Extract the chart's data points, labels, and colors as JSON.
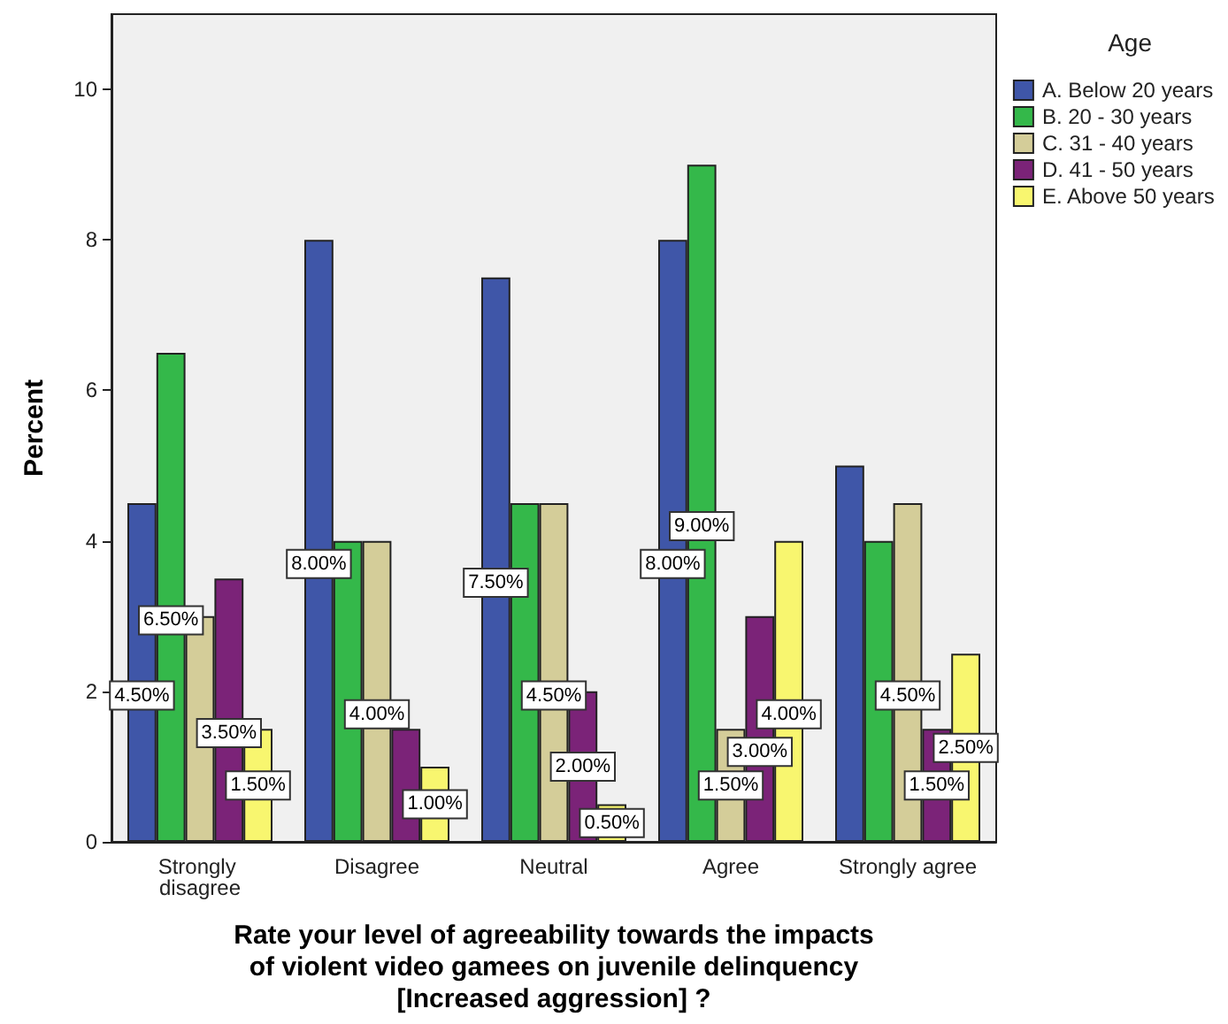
{
  "chart_data": {
    "type": "bar",
    "categories": [
      "Strongly disagree",
      "Disagree",
      "Neutral",
      "Agree",
      "Strongly agree"
    ],
    "series": [
      {
        "name": "A. Below 20 years",
        "color": "#3f56a8",
        "values": [
          4.5,
          8,
          7.5,
          8,
          5
        ],
        "value_labels": [
          "4.50%",
          "8.00%",
          "7.50%",
          "8.00%",
          null
        ]
      },
      {
        "name": "B. 20 - 30 years",
        "color": "#34b84a",
        "values": [
          6.5,
          4,
          4.5,
          9,
          4
        ],
        "value_labels": [
          "6.50%",
          null,
          null,
          "9.00%",
          null
        ]
      },
      {
        "name": "C. 31 - 40 years",
        "color": "#d4cd99",
        "values": [
          3,
          4,
          4.5,
          1.5,
          4.5
        ],
        "value_labels": [
          null,
          "4.00%",
          "4.50%",
          "1.50%",
          "4.50%"
        ]
      },
      {
        "name": "D. 41 - 50 years",
        "color": "#7b2378",
        "values": [
          3.5,
          1.5,
          2,
          3,
          1.5
        ],
        "value_labels": [
          "3.50%",
          null,
          "2.00%",
          "3.00%",
          "1.50%"
        ]
      },
      {
        "name": "E. Above 50 years",
        "color": "#f8f66f",
        "values": [
          1.5,
          1,
          0.5,
          4,
          2.5
        ],
        "value_labels": [
          "1.50%",
          "1.00%",
          "0.50%",
          "4.00%",
          "2.50%"
        ]
      }
    ],
    "xlabel": "Rate your level of agreeability towards the impacts\nof violent video gamees on juvenile delinquency\n[Increased aggression] ?",
    "ylabel": "Percent",
    "legend_title": "Age",
    "legend": "right",
    "ylim": [
      0,
      11
    ],
    "yticks": [
      0,
      2,
      4,
      6,
      8,
      10
    ],
    "grid": false
  }
}
